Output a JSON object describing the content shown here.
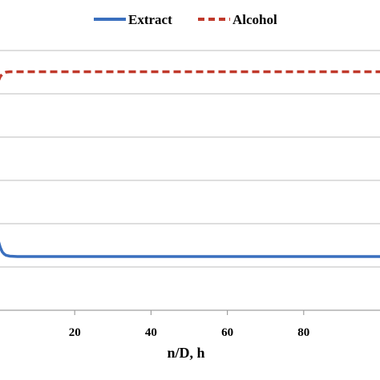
{
  "chart_data": {
    "type": "line",
    "title": "",
    "xlabel": "n/D, h",
    "ylabel": "",
    "xlim": [
      0,
      100
    ],
    "ylim": [
      0,
      7
    ],
    "x_ticks": [
      20,
      40,
      60,
      80
    ],
    "x_tick_labels": [
      "20",
      "40",
      "60",
      "80"
    ],
    "y_gridlines": [
      1,
      2,
      3,
      4,
      5,
      6
    ],
    "grid": true,
    "legend": "top-center",
    "series": [
      {
        "name": "Extract",
        "color": "#3a6fbe",
        "style": "solid",
        "x": [
          0,
          0.5,
          1,
          1.5,
          2,
          3,
          5,
          10,
          20,
          40,
          60,
          80,
          100
        ],
        "y": [
          1.6,
          1.45,
          1.35,
          1.3,
          1.27,
          1.25,
          1.24,
          1.24,
          1.24,
          1.24,
          1.24,
          1.24,
          1.24
        ]
      },
      {
        "name": "Alcohol",
        "color": "#c0392b",
        "style": "dashed",
        "x": [
          0,
          0.5,
          1,
          1.5,
          2,
          3,
          5,
          10,
          20,
          40,
          60,
          80,
          100
        ],
        "y": [
          5.3,
          5.4,
          5.45,
          5.48,
          5.5,
          5.51,
          5.51,
          5.51,
          5.51,
          5.51,
          5.51,
          5.51,
          5.51
        ]
      }
    ]
  }
}
